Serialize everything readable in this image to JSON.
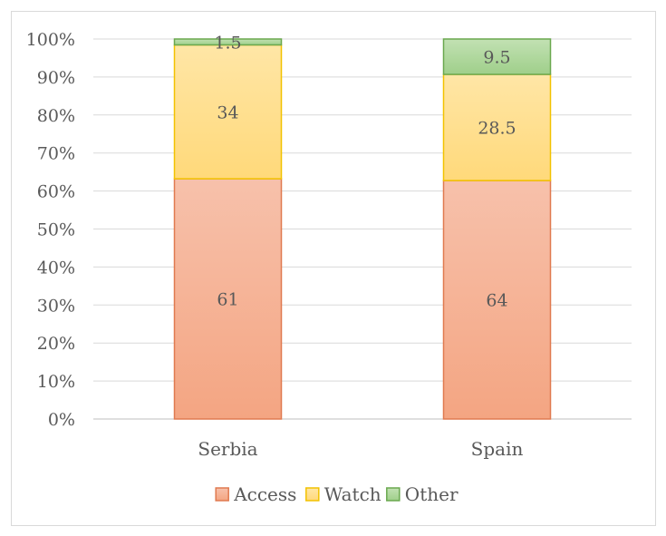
{
  "chart_data": {
    "type": "bar",
    "stacked": true,
    "percent": true,
    "categories": [
      "Serbia",
      "Spain"
    ],
    "series": [
      {
        "name": "Access",
        "values": [
          61,
          64
        ],
        "labels": [
          "61",
          "64"
        ],
        "color": "#f4a582",
        "light": "#f7c1ab",
        "border": "#e07a50"
      },
      {
        "name": "Watch",
        "values": [
          34,
          28.5
        ],
        "labels": [
          "34",
          "28.5"
        ],
        "color": "#ffd97a",
        "light": "#ffe6a6",
        "border": "#f2c200"
      },
      {
        "name": "Other",
        "values": [
          1.5,
          9.5
        ],
        "labels": [
          "1.5",
          "9.5"
        ],
        "color": "#9fcf8a",
        "light": "#c2e1b3",
        "border": "#6aa84f"
      }
    ],
    "ylim": [
      0,
      100
    ],
    "yticks": [
      "0%",
      "10%",
      "20%",
      "30%",
      "40%",
      "50%",
      "60%",
      "70%",
      "80%",
      "90%",
      "100%"
    ],
    "grid": true,
    "legend_position": "bottom"
  }
}
